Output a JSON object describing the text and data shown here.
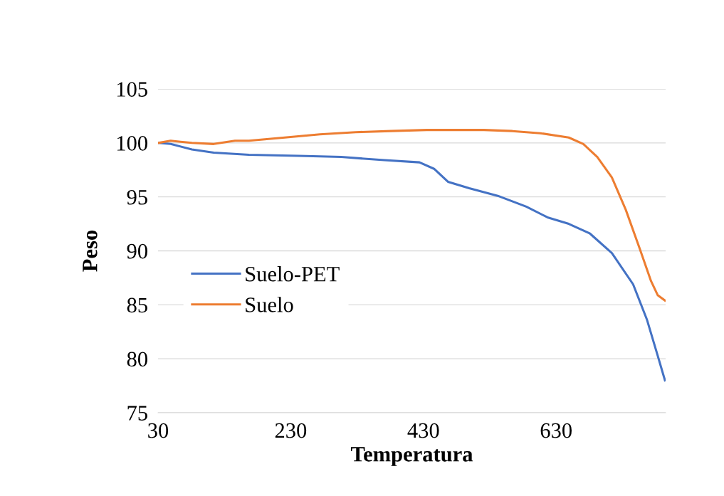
{
  "chart_data": {
    "type": "line",
    "xlabel": "Temperatura",
    "ylabel": "Peso",
    "xlim": [
      30,
      795
    ],
    "xticks": [
      30,
      230,
      430,
      630
    ],
    "ylim": [
      75,
      105
    ],
    "yticks": [
      75,
      80,
      85,
      90,
      95,
      100,
      105
    ],
    "grid": "y",
    "legend": "center left",
    "marker": "none",
    "line_style": "solid",
    "series": [
      {
        "name": "Suelo-PET",
        "color": "#4472c4",
        "x": [
          30,
          49,
          81,
          114,
          167,
          242,
          306,
          371,
          424,
          446,
          467,
          499,
          542,
          585,
          617,
          649,
          681,
          714,
          746,
          767,
          783,
          794
        ],
        "values": [
          100.0,
          99.9,
          99.4,
          99.1,
          98.9,
          98.8,
          98.7,
          98.4,
          98.2,
          97.6,
          96.4,
          95.8,
          95.1,
          94.1,
          93.1,
          92.5,
          91.6,
          89.8,
          86.9,
          83.6,
          80.3,
          78.0
        ]
      },
      {
        "name": "Suelo",
        "color": "#ed7d31",
        "x": [
          30,
          49,
          81,
          114,
          146,
          167,
          221,
          274,
          328,
          381,
          435,
          521,
          564,
          606,
          649,
          671,
          692,
          714,
          735,
          756,
          773,
          783,
          794
        ],
        "values": [
          100.0,
          100.2,
          100.0,
          99.9,
          100.2,
          100.2,
          100.5,
          100.8,
          101.0,
          101.1,
          101.2,
          101.2,
          101.1,
          100.9,
          100.5,
          99.9,
          98.7,
          96.8,
          93.8,
          90.2,
          87.2,
          85.9,
          85.4
        ]
      }
    ]
  }
}
